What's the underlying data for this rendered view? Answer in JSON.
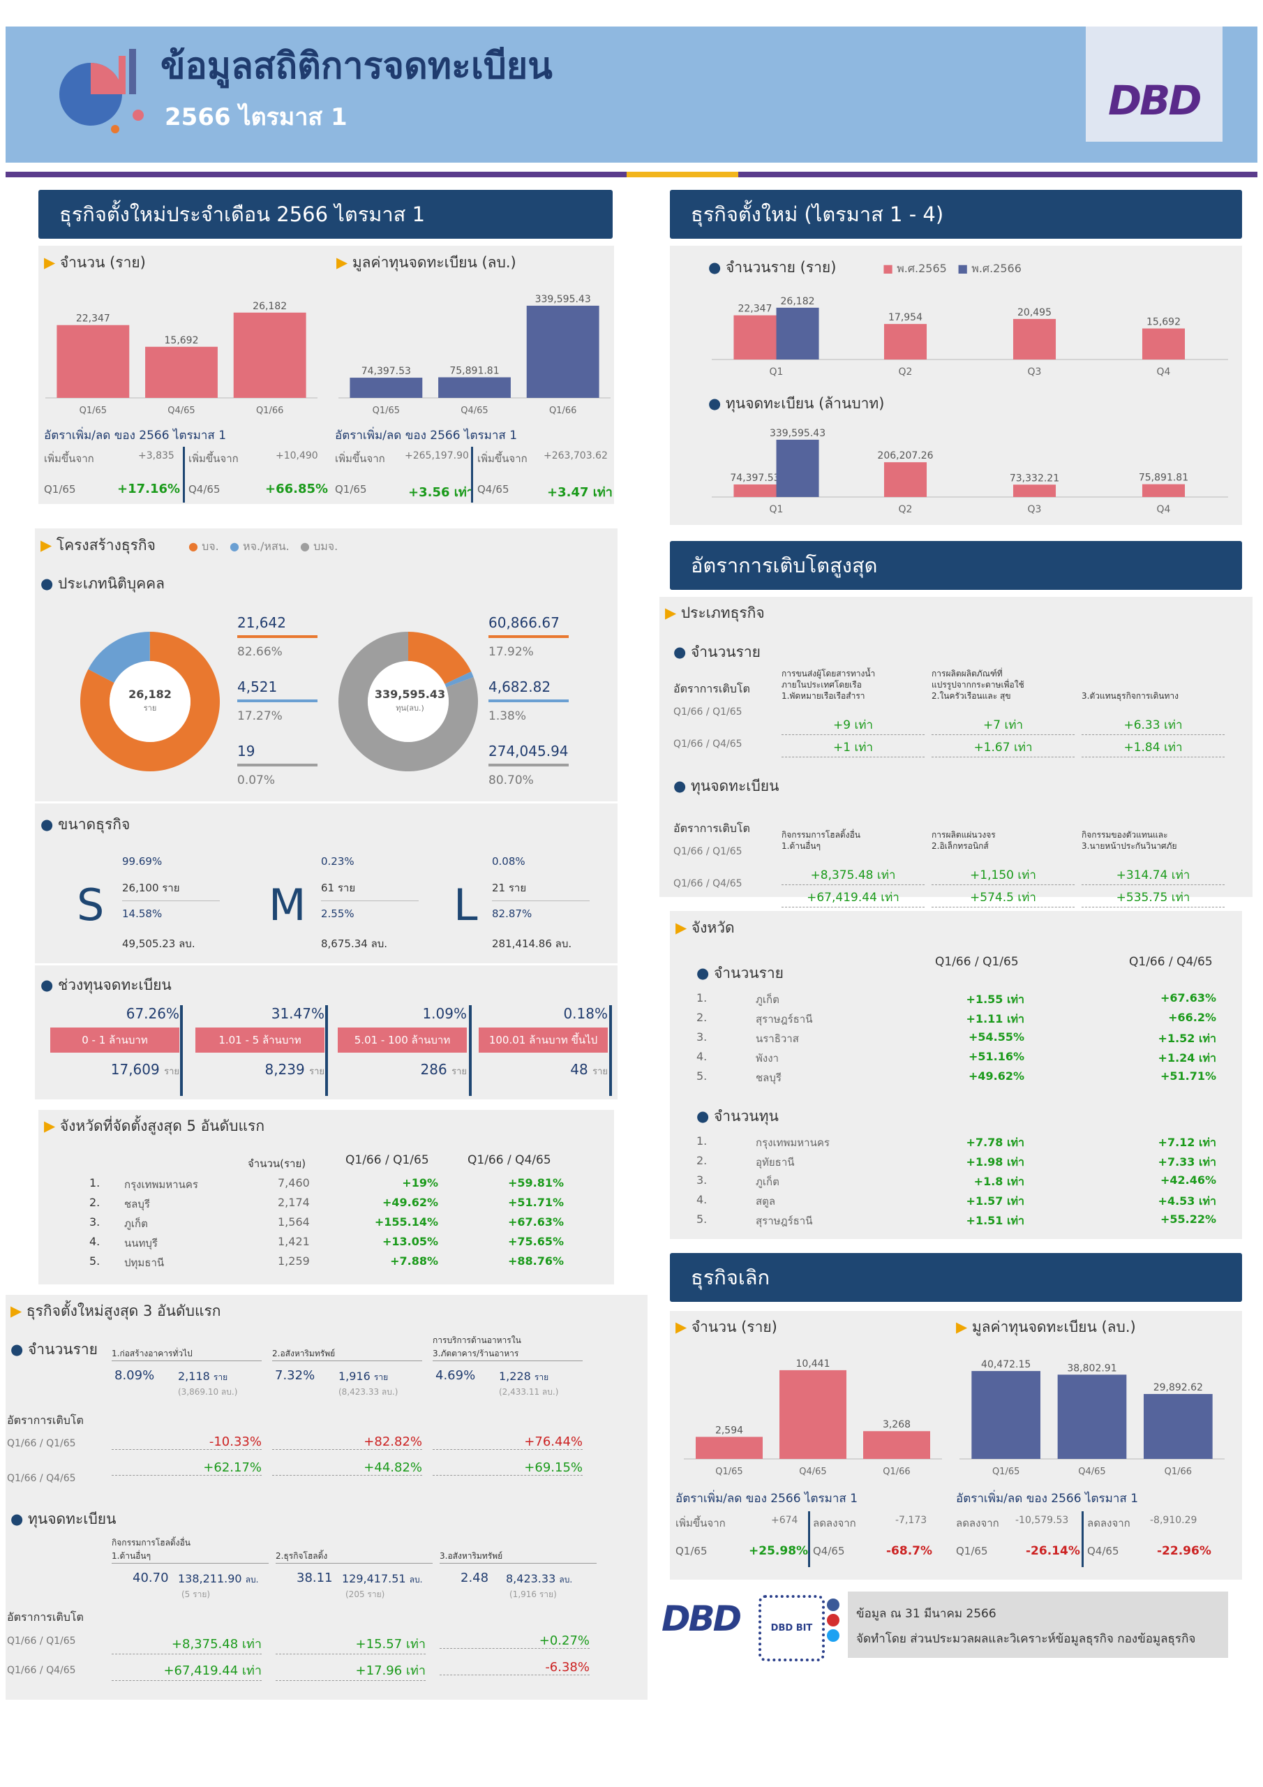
{
  "header": {
    "title": "ข้อมูลสถิติการจดทะเบียน",
    "subtitle": "2566 ไตรมาส 1",
    "logo": "DBD"
  },
  "colors": {
    "pink": "#e26f7a",
    "blue": "#55649c",
    "orange": "#e9782f",
    "lightblue": "#6a9fd2",
    "gray": "#9e9e9e",
    "navy": "#1e4672"
  },
  "monthly": {
    "header": "ธุรกิจตั้งใหม่ประจำเดือน  2566 ไตรมาส 1",
    "count_label": "จำนวน (ราย)",
    "capital_label": "มูลค่าทุนจดทะเบียน (ลบ.)",
    "count_rate_label": "อัตราเพิ่ม/ลด ของ 2566 ไตรมาส 1",
    "capital_rate_label": "อัตราเพิ่ม/ลด ของ 2566 ไตรมาส 1",
    "increase_from": "เพิ่มขึ้นจาก",
    "c1_delta": "+3,835",
    "c1_period": "Q1/65",
    "c1_rate": "+17.16%",
    "c2_delta": "+10,490",
    "c2_period": "Q4/65",
    "c2_rate": "+66.85%",
    "k1_delta": "+265,197.90",
    "k1_period": "Q1/65",
    "k1_rate": "+3.56 เท่า",
    "k2_delta": "+263,703.62",
    "k2_period": "Q4/65",
    "k2_rate": "+3.47 เท่า"
  },
  "quarterly": {
    "header": "ธุรกิจตั้งใหม่ (ไตรมาส 1 - 4)",
    "count_label": "จำนวนราย (ราย)",
    "legend_2565": "พ.ศ.2565",
    "legend_2566": "พ.ศ.2566",
    "capital_label": "ทุนจดทะเบียน (ล้านบาท)"
  },
  "structure": {
    "title": "โครงสร้างธุรกิจ",
    "legend": [
      "บจ.",
      "หจ./หสน.",
      "บมจ."
    ],
    "entity_title": "ประเภทนิติบุคคล",
    "donut1_value": "26,182",
    "donut1_unit": "ราย",
    "donut2_value": "339,595.43",
    "donut2_unit": "ทุน(ลบ.)",
    "left_items": [
      {
        "v": "21,642",
        "p": "82.66%"
      },
      {
        "v": "4,521",
        "p": "17.27%"
      },
      {
        "v": "19",
        "p": "0.07%"
      }
    ],
    "right_items": [
      {
        "v": "60,866.67",
        "p": "17.92%"
      },
      {
        "v": "4,682.82",
        "p": "1.38%"
      },
      {
        "v": "274,045.94",
        "p": "80.70%"
      }
    ],
    "size_title": "ขนาดธุรกิจ",
    "sizes": [
      {
        "letter": "S",
        "p1": "99.69%",
        "count": "26,100 ราย",
        "p2": "14.58%",
        "cap": "49,505.23 ลบ."
      },
      {
        "letter": "M",
        "p1": "0.23%",
        "count": "61 ราย",
        "p2": "2.55%",
        "cap": "8,675.34 ลบ."
      },
      {
        "letter": "L",
        "p1": "0.08%",
        "count": "21 ราย",
        "p2": "82.87%",
        "cap": "281,414.86 ลบ."
      }
    ],
    "range_title": "ช่วงทุนจดทะเบียน",
    "ranges": [
      {
        "p": "67.26%",
        "label": "0 - 1 ล้านบาท",
        "n": "17,609",
        "u": "ราย"
      },
      {
        "p": "31.47%",
        "label": "1.01 - 5 ล้านบาท",
        "n": "8,239",
        "u": "ราย"
      },
      {
        "p": "1.09%",
        "label": "5.01 - 100 ล้านบาท",
        "n": "286",
        "u": "ราย"
      },
      {
        "p": "0.18%",
        "label": "100.01 ล้านบาท ขึ้นไป",
        "n": "48",
        "u": "ราย"
      }
    ]
  },
  "top5": {
    "title": "จังหวัดที่จัดตั้งสูงสุด 5 อันดับแรก",
    "h1": "จำนวน(ราย)",
    "h2": "Q1/66  /  Q1/65",
    "h3": "Q1/66  /  Q4/65",
    "rows": [
      {
        "i": "1.",
        "n": "กรุงเทพมหานคร",
        "c": "7,460",
        "a": "+19%",
        "b": "+59.81%"
      },
      {
        "i": "2.",
        "n": "ชลบุรี",
        "c": "2,174",
        "a": "+49.62%",
        "b": "+51.71%"
      },
      {
        "i": "3.",
        "n": "ภูเก็ต",
        "c": "1,564",
        "a": "+155.14%",
        "b": "+67.63%"
      },
      {
        "i": "4.",
        "n": "นนทบุรี",
        "c": "1,421",
        "a": "+13.05%",
        "b": "+75.65%"
      },
      {
        "i": "5.",
        "n": "ปทุมธานี",
        "c": "1,259",
        "a": "+7.88%",
        "b": "+88.76%"
      }
    ]
  },
  "top3": {
    "title": "ธุรกิจตั้งใหม่สูงสุด 3 อันดับแรก",
    "count_title": "จำนวนราย",
    "growth_label": "อัตราการเติบโต",
    "p1": "Q1/66  /  Q1/65",
    "p2": "Q1/66  /  Q4/65",
    "capital_title": "ทุนจดทะเบียน",
    "count_items": [
      {
        "name": "1.ก่อสร้างอาคารทั่วไป",
        "pct": "8.09%",
        "n": "2,118",
        "u": "ราย",
        "sub": "(3,869.10  ลบ.)",
        "g1": "-10.33%",
        "g2": "+62.17%"
      },
      {
        "name": "2.อสังหาริมทรัพย์",
        "pct": "7.32%",
        "n": "1,916",
        "u": "ราย",
        "sub": "(8,423.33  ลบ.)",
        "g1": "+82.82%",
        "g2": "+44.82%"
      },
      {
        "name": "การบริการด้านอาหารใน\n3.ภัตตาคาร/ร้านอาหาร",
        "pct": "4.69%",
        "n": "1,228",
        "u": "ราย",
        "sub": "(2,433.11  ลบ.)",
        "g1": "+76.44%",
        "g2": "+69.15%"
      }
    ],
    "cap_items": [
      {
        "name": "กิจกรรมการโฮลดิ้งอื่น\n1.ด้านอื่นๆ",
        "pct": "40.70",
        "n": "138,211.90",
        "u": "ลบ.",
        "sub": "(5  ราย)",
        "g1": "+8,375.48 เท่า",
        "g2": "+67,419.44 เท่า"
      },
      {
        "name": "2.ธุรกิจโฮลดิ้ง",
        "pct": "38.11",
        "n": "129,417.51",
        "u": "ลบ.",
        "sub": "(205  ราย)",
        "g1": "+15.57 เท่า",
        "g2": "+17.96 เท่า"
      },
      {
        "name": "3.อสังหาริมทรัพย์",
        "pct": "2.48",
        "n": "8,423.33",
        "u": "ลบ.",
        "sub": "(1,916  ราย)",
        "g1": "+0.27%",
        "g2": "-6.38%"
      }
    ]
  },
  "growth": {
    "header": "อัตราการเติบโตสูงสุด",
    "type_title": "ประเภทธุรกิจ",
    "count_title": "จำนวนราย",
    "rate_label": "อัตราการเติบโต",
    "p1": "Q1/66  /  Q1/65",
    "p2": "Q1/66  /  Q4/65",
    "capital_title": "ทุนจดทะเบียน",
    "count_items": [
      {
        "name": "การขนส่งผู้โดยสารทางน้ำ\nภายในประเทศโดยเรือ\n1.พัดหมายเรือเรือสำรา",
        "a": "+9 เท่า",
        "b": "+1 เท่า"
      },
      {
        "name": "การผลิตผลิตภัณฑ์ที่\nแปรรูปจากกระดาษเพื่อใช้\n2.ในครัวเรือนและ สุข",
        "a": "+7 เท่า",
        "b": "+1.67 เท่า"
      },
      {
        "name": "3.ตัวแทนธุรกิจการเดินทาง",
        "a": "+6.33 เท่า",
        "b": "+1.84 เท่า"
      }
    ],
    "cap_items": [
      {
        "name": "กิจกรรมการโฮลดิ้งอื่น\n1.ด้านอื่นๆ",
        "a": "+8,375.48 เท่า",
        "b": "+67,419.44 เท่า"
      },
      {
        "name": "การผลิตแผ่นวงจร\n2.อิเล็กทรอนิกส์",
        "a": "+1,150 เท่า",
        "b": "+574.5 เท่า"
      },
      {
        "name": "กิจกรรมของตัวแทนและ\n3.นายหน้าประกันวินาศภัย",
        "a": "+314.74 เท่า",
        "b": "+535.75 เท่า"
      }
    ]
  },
  "province": {
    "title": "จังหวัด",
    "h1": "Q1/66  /  Q1/65",
    "h2": "Q1/66  /  Q4/65",
    "count_title": "จำนวนราย",
    "capital_title": "จำนวนทุน",
    "count_rows": [
      {
        "i": "1.",
        "n": "ภูเก็ต",
        "a": "+1.55 เท่า",
        "b": "+67.63%"
      },
      {
        "i": "2.",
        "n": "สุราษฎร์ธานี",
        "a": "+1.11 เท่า",
        "b": "+66.2%"
      },
      {
        "i": "3.",
        "n": "นราธิวาส",
        "a": "+54.55%",
        "b": "+1.52 เท่า"
      },
      {
        "i": "4.",
        "n": "พังงา",
        "a": "+51.16%",
        "b": "+1.24 เท่า"
      },
      {
        "i": "5.",
        "n": "ชลบุรี",
        "a": "+49.62%",
        "b": "+51.71%"
      }
    ],
    "cap_rows": [
      {
        "i": "1.",
        "n": "กรุงเทพมหานคร",
        "a": "+7.78 เท่า",
        "b": "+7.12 เท่า"
      },
      {
        "i": "2.",
        "n": "อุทัยธานี",
        "a": "+1.98 เท่า",
        "b": "+7.33 เท่า"
      },
      {
        "i": "3.",
        "n": "ภูเก็ต",
        "a": "+1.8 เท่า",
        "b": "+42.46%"
      },
      {
        "i": "4.",
        "n": "สตูล",
        "a": "+1.57 เท่า",
        "b": "+4.53 เท่า"
      },
      {
        "i": "5.",
        "n": "สุราษฎร์ธานี",
        "a": "+1.51 เท่า",
        "b": "+55.22%"
      }
    ]
  },
  "dissolve": {
    "header": "ธุรกิจเลิก",
    "count_label": "จำนวน (ราย)",
    "capital_label": "มูลค่าทุนจดทะเบียน (ลบ.)",
    "count_rate_label": "อัตราเพิ่ม/ลด ของ 2566 ไตรมาส 1",
    "capital_rate_label": "อัตราเพิ่ม/ลด ของ 2566 ไตรมาส 1",
    "c1_word": "เพิ่มขึ้นจาก",
    "c1_delta": "+674",
    "c1_period": "Q1/65",
    "c1_rate": "+25.98%",
    "c2_word": "ลดลงจาก",
    "c2_delta": "-7,173",
    "c2_period": "Q4/65",
    "c2_rate": "-68.7%",
    "k1_word": "ลดลงจาก",
    "k1_delta": "-10,579.53",
    "k1_period": "Q1/65",
    "k1_rate": "-26.14%",
    "k2_word": "ลดลงจาก",
    "k2_delta": "-8,910.29",
    "k2_period": "Q4/65",
    "k2_rate": "-22.96%"
  },
  "footer": {
    "logo": "DBD",
    "bit": "DBD BIT",
    "date": "ข้อมูล ณ    31 มีนาคม  2566",
    "credit": "จัดทำโดย ส่วนประมวลผลและวิเคราะห์ข้อมูลธุรกิจ กองข้อมูลธุรกิจ"
  },
  "chart_data": [
    {
      "type": "bar",
      "name": "new-count",
      "categories": [
        "Q1/65",
        "Q4/65",
        "Q1/66"
      ],
      "values": [
        22347,
        15692,
        26182
      ],
      "labels": [
        "22,347",
        "15,692",
        "26,182"
      ],
      "ylim": [
        0,
        30000
      ]
    },
    {
      "type": "bar",
      "name": "new-capital",
      "categories": [
        "Q1/65",
        "Q4/65",
        "Q1/66"
      ],
      "values": [
        74397.53,
        75891.81,
        339595.43
      ],
      "labels": [
        "74,397.53",
        "75,891.81",
        "339,595.43"
      ],
      "ylim": [
        0,
        360000
      ]
    },
    {
      "type": "bar",
      "name": "quarterly-count",
      "categories": [
        "Q1",
        "Q2",
        "Q3",
        "Q4"
      ],
      "series": [
        {
          "name": "พ.ศ.2565",
          "values": [
            22347,
            17954,
            20495,
            15692
          ],
          "labels": [
            "22,347",
            "17,954",
            "20,495",
            "15,692"
          ]
        },
        {
          "name": "พ.ศ.2566",
          "values": [
            26182,
            null,
            null,
            null
          ],
          "labels": [
            "26,182",
            "",
            "",
            ""
          ]
        }
      ],
      "ylim": [
        0,
        30000
      ]
    },
    {
      "type": "bar",
      "name": "quarterly-capital",
      "categories": [
        "Q1",
        "Q2",
        "Q3",
        "Q4"
      ],
      "series": [
        {
          "name": "พ.ศ.2565",
          "values": [
            74397.53,
            206207.26,
            73332.21,
            75891.81
          ],
          "labels": [
            "74,397.53",
            "206,207.26",
            "73,332.21",
            "75,891.81"
          ]
        },
        {
          "name": "พ.ศ.2566",
          "values": [
            339595.43,
            null,
            null,
            null
          ],
          "labels": [
            "339,595.43",
            "",
            "",
            ""
          ]
        }
      ],
      "ylim": [
        0,
        360000
      ]
    },
    {
      "type": "pie",
      "name": "entity-count",
      "labels": [
        "บจ.",
        "หจ./หสน.",
        "บมจ."
      ],
      "values": [
        82.66,
        17.27,
        0.07
      ]
    },
    {
      "type": "pie",
      "name": "entity-capital",
      "labels": [
        "บจ.",
        "หจ./หสน.",
        "บมจ."
      ],
      "values": [
        17.92,
        1.38,
        80.7
      ]
    },
    {
      "type": "bar",
      "name": "dissolve-count",
      "categories": [
        "Q1/65",
        "Q4/65",
        "Q1/66"
      ],
      "values": [
        2594,
        10441,
        3268
      ],
      "labels": [
        "2,594",
        "10,441",
        "3,268"
      ],
      "ylim": [
        0,
        11500
      ]
    },
    {
      "type": "bar",
      "name": "dissolve-capital",
      "categories": [
        "Q1/65",
        "Q4/65",
        "Q1/66"
      ],
      "values": [
        40472.15,
        38802.91,
        29892.62
      ],
      "labels": [
        "40,472.15",
        "38,802.91",
        "29,892.62"
      ],
      "ylim": [
        0,
        45000
      ]
    }
  ]
}
